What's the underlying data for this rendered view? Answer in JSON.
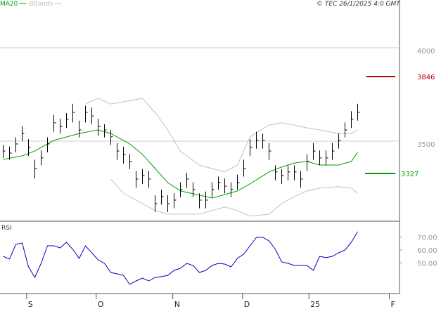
{
  "chart_data": [
    {
      "type": "ohlc",
      "annotation": "© TEC 26/1/2025 4:0 GMT",
      "xlim": [
        -0.5,
        62.5
      ],
      "xticks": [
        {
          "value": 3.7,
          "label": "S"
        },
        {
          "value": 14.7,
          "label": "O"
        },
        {
          "value": 26.8,
          "label": "N"
        },
        {
          "value": 37.8,
          "label": "D"
        },
        {
          "value": 48.3,
          "label": "25"
        },
        {
          "value": 61,
          "label": "F"
        }
      ],
      "ylim": [
        3071,
        4256
      ],
      "yticks": [
        3500,
        4000
      ],
      "grid": true,
      "bar_color": "#000000",
      "highs": [
        3480,
        3470,
        3520,
        3580,
        3510,
        3400,
        3450,
        3520,
        3640,
        3620,
        3650,
        3700,
        3610,
        3690,
        3680,
        3620,
        3590,
        3560,
        3490,
        3470,
        3430,
        3340,
        3350,
        3340,
        3210,
        3240,
        3210,
        3220,
        3280,
        3330,
        3280,
        3220,
        3230,
        3280,
        3310,
        3300,
        3280,
        3320,
        3400,
        3510,
        3550,
        3540,
        3490,
        3370,
        3350,
        3370,
        3370,
        3340,
        3430,
        3490,
        3450,
        3450,
        3490,
        3540,
        3600,
        3660,
        3700
      ],
      "lows": [
        3410,
        3400,
        3440,
        3500,
        3420,
        3300,
        3370,
        3440,
        3550,
        3540,
        3570,
        3600,
        3520,
        3600,
        3590,
        3530,
        3520,
        3480,
        3400,
        3380,
        3350,
        3250,
        3270,
        3250,
        3120,
        3160,
        3120,
        3140,
        3200,
        3250,
        3200,
        3140,
        3140,
        3200,
        3240,
        3220,
        3200,
        3240,
        3310,
        3420,
        3460,
        3460,
        3400,
        3290,
        3270,
        3290,
        3290,
        3250,
        3340,
        3400,
        3370,
        3370,
        3400,
        3460,
        3520,
        3570,
        3610
      ],
      "closes": [
        3447,
        3436,
        3485,
        3541,
        3466,
        3353,
        3410,
        3485,
        3598,
        3579,
        3617,
        3654,
        3560,
        3654,
        3635,
        3579,
        3560,
        3523,
        3447,
        3429,
        3391,
        3297,
        3316,
        3297,
        3165,
        3203,
        3165,
        3184,
        3241,
        3297,
        3241,
        3184,
        3184,
        3241,
        3278,
        3259,
        3241,
        3278,
        3353,
        3466,
        3504,
        3504,
        3447,
        3335,
        3316,
        3335,
        3335,
        3297,
        3391,
        3447,
        3410,
        3410,
        3447,
        3504,
        3560,
        3617,
        3654
      ],
      "series": [
        {
          "name": "MA20",
          "color": "#00a000",
          "x": [
            0,
            3,
            5,
            8,
            12,
            15,
            17,
            20,
            22,
            24,
            26,
            28,
            31,
            33,
            35,
            37,
            39,
            42,
            44,
            46,
            48,
            50,
            53,
            55,
            56
          ],
          "values": [
            3402,
            3421,
            3447,
            3504,
            3541,
            3560,
            3541,
            3485,
            3429,
            3353,
            3278,
            3233,
            3211,
            3195,
            3214,
            3233,
            3271,
            3335,
            3361,
            3383,
            3391,
            3372,
            3372,
            3391,
            3440
          ]
        },
        {
          "name": "BBands",
          "color": "#c0c0c0",
          "x": [
            13,
            15,
            17,
            19,
            22,
            24,
            26,
            28,
            31,
            33,
            35,
            37,
            39,
            42,
            44,
            46,
            48,
            50,
            53,
            55,
            56
          ],
          "upper": [
            3699,
            3729,
            3699,
            3711,
            3729,
            3654,
            3560,
            3447,
            3372,
            3353,
            3335,
            3372,
            3523,
            3586,
            3598,
            3586,
            3571,
            3560,
            3541,
            3541,
            3560
          ],
          "lower": [
            null,
            null,
            3297,
            3222,
            3165,
            3128,
            3109,
            3109,
            3109,
            3128,
            3147,
            3128,
            3098,
            3109,
            3165,
            3203,
            3233,
            3248,
            3256,
            3248,
            3222
          ]
        }
      ],
      "levels": [
        {
          "value": 3846,
          "color": "#c00000"
        },
        {
          "value": 3327,
          "color": "#00a000"
        }
      ]
    },
    {
      "type": "line",
      "title": "RSI",
      "xlim": [
        -0.5,
        62.5
      ],
      "ylim": [
        26.5,
        80.5
      ],
      "yticks": [
        {
          "value": 50,
          "label": "50.00"
        },
        {
          "value": 60,
          "label": "60.00"
        },
        {
          "value": 70,
          "label": "70.00"
        }
      ],
      "color": "#0000c0",
      "values": [
        55.1,
        53.0,
        64.3,
        65.4,
        47.0,
        38.9,
        49.7,
        63.2,
        63.2,
        61.6,
        65.9,
        60.5,
        53.5,
        63.2,
        57.8,
        52.4,
        49.7,
        42.7,
        41.6,
        40.5,
        33.5,
        36.2,
        38.4,
        36.2,
        38.9,
        39.5,
        40.5,
        44.3,
        45.9,
        49.7,
        48.1,
        42.7,
        44.3,
        48.1,
        49.7,
        49.2,
        47.0,
        53.5,
        56.8,
        63.2,
        69.7,
        69.7,
        67.0,
        60.5,
        50.8,
        49.7,
        48.1,
        48.1,
        48.1,
        44.3,
        55.1,
        54.1,
        55.1,
        57.8,
        60.0,
        65.9,
        74.1
      ]
    }
  ]
}
